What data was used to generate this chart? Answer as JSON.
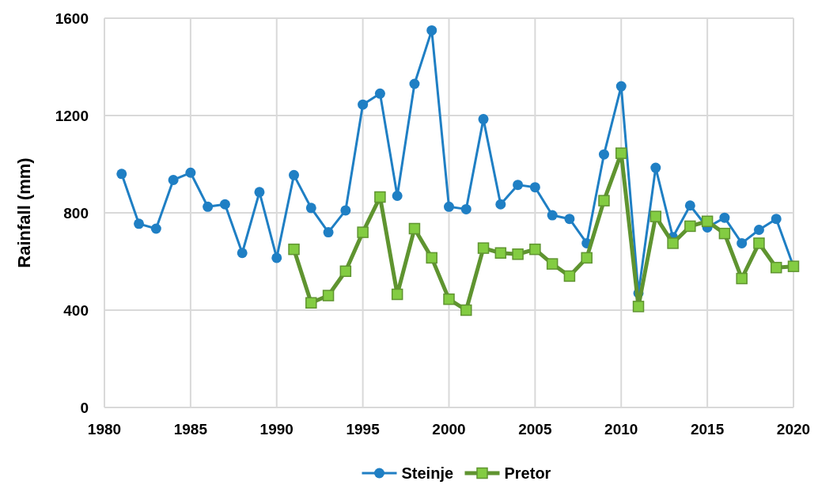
{
  "chart_data": {
    "type": "line",
    "ylabel": "Rainfall (mm)",
    "xlim": [
      1980,
      2020
    ],
    "xticks": [
      1980,
      1985,
      1990,
      1995,
      2000,
      2005,
      2010,
      2015,
      2020
    ],
    "ylim": [
      0,
      1600
    ],
    "yticks": [
      0,
      400,
      800,
      1200,
      1600
    ],
    "grid": true,
    "legend": "bottom",
    "series": [
      {
        "name": "Steinje",
        "color": "#1f7fc4",
        "marker": "circle",
        "x": [
          1981,
          1982,
          1983,
          1984,
          1985,
          1986,
          1987,
          1988,
          1989,
          1990,
          1991,
          1992,
          1993,
          1994,
          1995,
          1996,
          1997,
          1998,
          1999,
          2000,
          2001,
          2002,
          2003,
          2004,
          2005,
          2006,
          2007,
          2008,
          2009,
          2010,
          2011,
          2012,
          2013,
          2014,
          2015,
          2016,
          2017,
          2018,
          2019,
          2020
        ],
        "values": [
          960,
          755,
          735,
          935,
          965,
          825,
          835,
          635,
          885,
          615,
          955,
          820,
          720,
          810,
          1245,
          1290,
          870,
          1330,
          1550,
          825,
          815,
          1185,
          835,
          915,
          905,
          790,
          775,
          675,
          1040,
          1320,
          470,
          985,
          700,
          830,
          740,
          780,
          675,
          730,
          775,
          580
        ]
      },
      {
        "name": "Pretor",
        "color": "#5f9430",
        "marker": "square",
        "x": [
          1991,
          1992,
          1993,
          1994,
          1995,
          1996,
          1997,
          1998,
          1999,
          2000,
          2001,
          2002,
          2003,
          2004,
          2005,
          2006,
          2007,
          2008,
          2009,
          2010,
          2011,
          2012,
          2013,
          2014,
          2015,
          2016,
          2017,
          2018,
          2019,
          2020
        ],
        "values": [
          650,
          430,
          460,
          560,
          720,
          865,
          465,
          735,
          615,
          445,
          400,
          655,
          635,
          630,
          650,
          590,
          540,
          615,
          850,
          1045,
          415,
          785,
          675,
          745,
          765,
          715,
          530,
          675,
          575,
          580
        ]
      }
    ]
  }
}
